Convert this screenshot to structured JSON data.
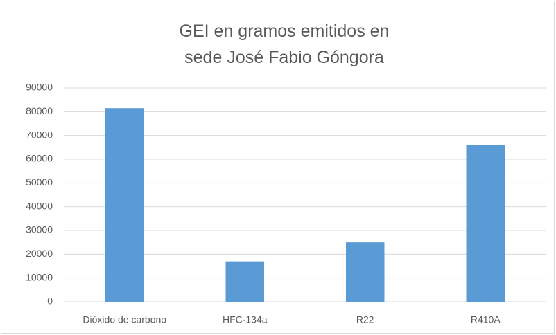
{
  "chart_data": {
    "type": "bar",
    "title": "GEI en gramos emitidos en sede José Fabio Góngora",
    "categories": [
      "Dióxido de carbono",
      "HFC-134a",
      "R22",
      "R410A"
    ],
    "values": [
      81500,
      17000,
      25000,
      66000
    ],
    "color": "#5b9bd5",
    "ylim": [
      0,
      90000
    ],
    "yticks": [
      0,
      10000,
      20000,
      30000,
      40000,
      50000,
      60000,
      70000,
      80000,
      90000
    ],
    "grid": true
  }
}
